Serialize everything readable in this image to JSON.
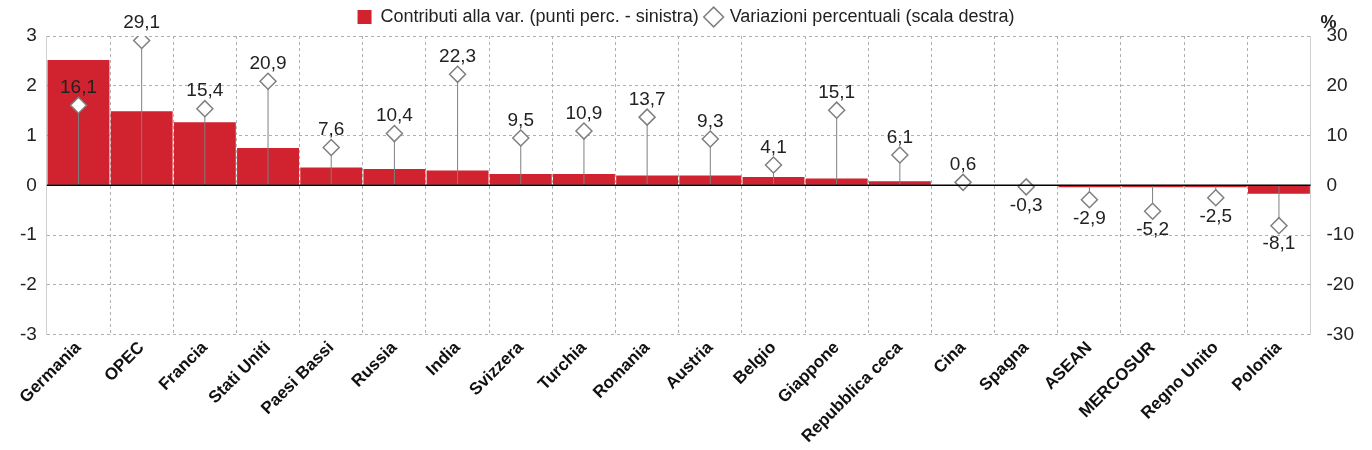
{
  "chart_data": {
    "type": "bar",
    "legend": "top",
    "grid": true,
    "categories": [
      "Germania",
      "OPEC",
      "Francia",
      "Stati Uniti",
      "Paesi Bassi",
      "Russia",
      "India",
      "Svizzera",
      "Turchia",
      "Romania",
      "Austria",
      "Belgio",
      "Giappone",
      "Repubblica ceca",
      "Cina",
      "Spagna",
      "ASEAN",
      "MERCOSUR",
      "Regno Unito",
      "Polonia"
    ],
    "series": [
      {
        "name": "Contributi alla var. (punti perc. - sinistra)",
        "color": "#d0222f",
        "values": [
          2.52,
          1.49,
          1.27,
          0.75,
          0.36,
          0.33,
          0.3,
          0.23,
          0.23,
          0.2,
          0.2,
          0.17,
          0.14,
          0.08,
          0.01,
          0.0,
          -0.04,
          -0.04,
          -0.04,
          -0.17
        ]
      },
      {
        "name": "Variazioni percentuali (scala destra)",
        "type": "lollipop",
        "axis": "y2",
        "marker": "diamond",
        "color": "#7f7f7f",
        "values": [
          16.1,
          29.1,
          15.4,
          20.9,
          7.6,
          10.4,
          22.3,
          9.5,
          10.9,
          13.7,
          9.3,
          4.1,
          15.1,
          6.1,
          0.6,
          -0.3,
          -2.9,
          -5.2,
          -2.5,
          -8.1
        ],
        "value_labels": [
          "16,1",
          "29,1",
          "15,4",
          "20,9",
          "7,6",
          "10,4",
          "22,3",
          "9,5",
          "10,9",
          "13,7",
          "9,3",
          "4,1",
          "15,1",
          "6,1",
          "0,6",
          "-0,3",
          "-2,9",
          "-5,2",
          "-2,5",
          "-8,1"
        ]
      }
    ],
    "ylim": [
      -3,
      3
    ],
    "yticks": [
      -3,
      -2,
      -1,
      0,
      1,
      2,
      3
    ],
    "y2lim": [
      -30,
      30
    ],
    "y2ticks": [
      -30,
      -20,
      -10,
      0,
      10,
      20,
      30
    ],
    "y2label": "%",
    "ref_lines": [
      {
        "axis": "y",
        "value": 0,
        "color": "#000000"
      }
    ]
  }
}
